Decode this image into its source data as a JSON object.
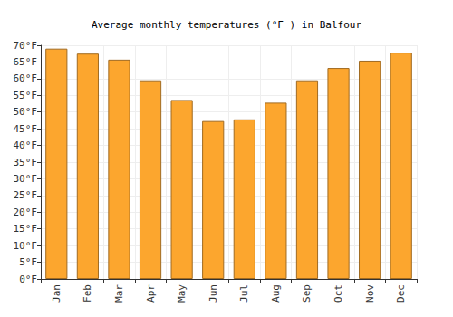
{
  "chart_data": {
    "type": "bar",
    "title": "Average monthly temperatures (°F ) in Balfour",
    "categories": [
      "Jan",
      "Feb",
      "Mar",
      "Apr",
      "May",
      "Jun",
      "Jul",
      "Aug",
      "Sep",
      "Oct",
      "Nov",
      "Dec"
    ],
    "values": [
      69,
      67.5,
      65.7,
      59.5,
      53.6,
      47.3,
      47.8,
      52.8,
      59.5,
      63.2,
      65.4,
      67.8
    ],
    "color": "#fca62e",
    "ylim": [
      0,
      70
    ],
    "yticks": [
      {
        "value": 0,
        "label": "0°F"
      },
      {
        "value": 5,
        "label": "5°F"
      },
      {
        "value": 10,
        "label": "10°F"
      },
      {
        "value": 15,
        "label": "15°F"
      },
      {
        "value": 20,
        "label": "20°F"
      },
      {
        "value": 25,
        "label": "25°F"
      },
      {
        "value": 30,
        "label": "30°F"
      },
      {
        "value": 35,
        "label": "35°F"
      },
      {
        "value": 40,
        "label": "40°F"
      },
      {
        "value": 45,
        "label": "45°F"
      },
      {
        "value": 50,
        "label": "50°F"
      },
      {
        "value": 55,
        "label": "55°F"
      },
      {
        "value": 60,
        "label": "60°F"
      },
      {
        "value": 65,
        "label": "65°F"
      },
      {
        "value": 70,
        "label": "70°F"
      }
    ],
    "grid": true
  }
}
